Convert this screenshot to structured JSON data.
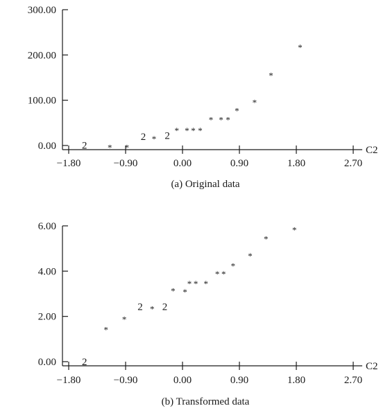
{
  "chart_data": [
    {
      "type": "scatter",
      "title": "",
      "caption": "(a) Original data",
      "xlabel": "C2",
      "ylabel": "",
      "xlim": [
        -1.8,
        2.7
      ],
      "ylim": [
        0,
        300
      ],
      "x_ticks": [
        "-1.80",
        "-0.90",
        "0.00",
        "0.90",
        "1.80",
        "2.70"
      ],
      "y_ticks": [
        "0.00",
        "100.00",
        "200.00",
        "300.00"
      ],
      "grid": false,
      "marker": "*",
      "points": [
        {
          "x": -1.55,
          "y": 1,
          "label": "2"
        },
        {
          "x": -1.15,
          "y": 1,
          "label": "*"
        },
        {
          "x": -0.88,
          "y": 1,
          "label": "*"
        },
        {
          "x": -0.62,
          "y": 20,
          "label": "2"
        },
        {
          "x": -0.45,
          "y": 20,
          "label": "*"
        },
        {
          "x": -0.24,
          "y": 22,
          "label": "2"
        },
        {
          "x": -0.09,
          "y": 38,
          "label": "*"
        },
        {
          "x": 0.07,
          "y": 38,
          "label": "*"
        },
        {
          "x": 0.17,
          "y": 38,
          "label": "*"
        },
        {
          "x": 0.28,
          "y": 38,
          "label": "*"
        },
        {
          "x": 0.45,
          "y": 62,
          "label": "*"
        },
        {
          "x": 0.61,
          "y": 62,
          "label": "*"
        },
        {
          "x": 0.72,
          "y": 62,
          "label": "*"
        },
        {
          "x": 0.86,
          "y": 82,
          "label": "*"
        },
        {
          "x": 1.14,
          "y": 100,
          "label": "*"
        },
        {
          "x": 1.4,
          "y": 160,
          "label": "*"
        },
        {
          "x": 1.86,
          "y": 222,
          "label": "*"
        }
      ]
    },
    {
      "type": "scatter",
      "title": "",
      "caption": "(b) Transformed data",
      "xlabel": "C2",
      "ylabel": "",
      "xlim": [
        -1.8,
        2.7
      ],
      "ylim": [
        0,
        6
      ],
      "x_ticks": [
        "-1.80",
        "-0.90",
        "0.00",
        "0.90",
        "1.80",
        "2.70"
      ],
      "y_ticks": [
        "0.00",
        "2.00",
        "4.00",
        "6.00"
      ],
      "grid": false,
      "marker": "*",
      "points": [
        {
          "x": -1.55,
          "y": 0.0,
          "label": "2"
        },
        {
          "x": -1.21,
          "y": 1.52,
          "label": "*"
        },
        {
          "x": -0.92,
          "y": 1.97,
          "label": "*"
        },
        {
          "x": -0.67,
          "y": 2.43,
          "label": "2"
        },
        {
          "x": -0.48,
          "y": 2.43,
          "label": "*"
        },
        {
          "x": -0.28,
          "y": 2.43,
          "label": "2"
        },
        {
          "x": -0.15,
          "y": 3.23,
          "label": "*"
        },
        {
          "x": 0.04,
          "y": 3.18,
          "label": "*"
        },
        {
          "x": 0.11,
          "y": 3.55,
          "label": "*"
        },
        {
          "x": 0.21,
          "y": 3.55,
          "label": "*"
        },
        {
          "x": 0.37,
          "y": 3.55,
          "label": "*"
        },
        {
          "x": 0.55,
          "y": 3.98,
          "label": "*"
        },
        {
          "x": 0.65,
          "y": 3.98,
          "label": "*"
        },
        {
          "x": 0.8,
          "y": 4.33,
          "label": "*"
        },
        {
          "x": 1.07,
          "y": 4.78,
          "label": "*"
        },
        {
          "x": 1.32,
          "y": 5.52,
          "label": "*"
        },
        {
          "x": 1.77,
          "y": 5.92,
          "label": "*"
        }
      ]
    }
  ]
}
